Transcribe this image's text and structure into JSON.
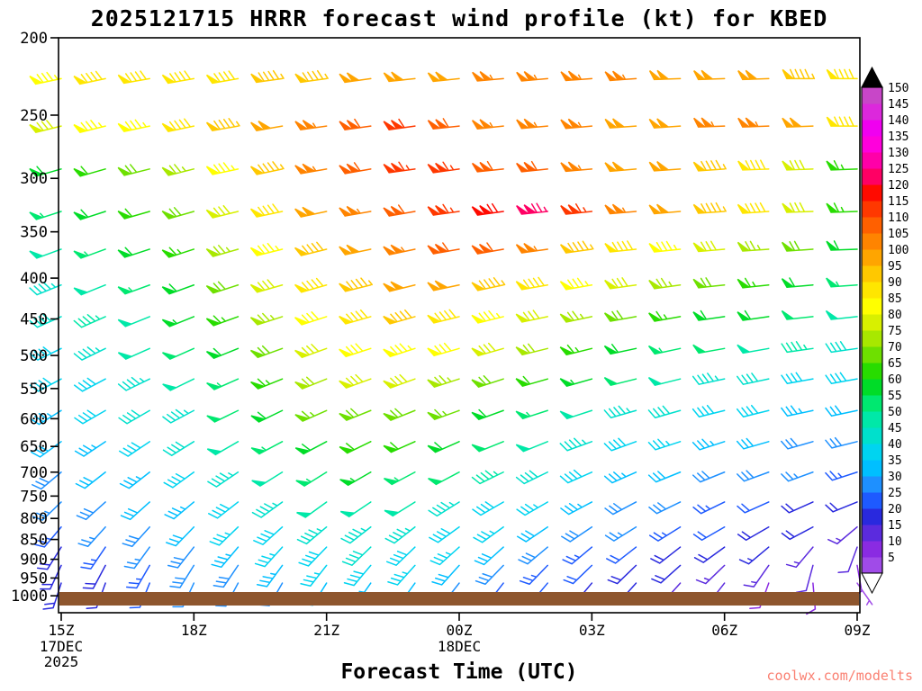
{
  "title": "2025121715 HRRR forecast wind profile (kt) for KBED",
  "xlabel": "Forecast Time (UTC)",
  "watermark": "coolwx.com/modelts",
  "ground_color": "#8E562E",
  "axes": {
    "pressure_ticks": [
      200,
      250,
      300,
      350,
      400,
      450,
      500,
      550,
      600,
      650,
      700,
      750,
      800,
      850,
      900,
      950,
      1000
    ],
    "time_ticks": [
      {
        "label": "15Z",
        "hour": 0
      },
      {
        "label": "18Z",
        "hour": 3
      },
      {
        "label": "21Z",
        "hour": 6
      },
      {
        "label": "00Z",
        "hour": 9
      },
      {
        "label": "03Z",
        "hour": 12
      },
      {
        "label": "06Z",
        "hour": 15
      },
      {
        "label": "09Z",
        "hour": 18
      }
    ],
    "date_labels": [
      {
        "text": "17DEC",
        "hour": 0,
        "row": 0
      },
      {
        "text": "2025",
        "hour": 0,
        "row": 1
      },
      {
        "text": "18DEC",
        "hour": 9,
        "row": 0
      }
    ]
  },
  "colorbar": {
    "units": "kt",
    "levels": [
      5,
      10,
      15,
      20,
      25,
      30,
      35,
      40,
      45,
      50,
      55,
      60,
      65,
      70,
      75,
      80,
      85,
      90,
      95,
      100,
      105,
      110,
      115,
      120,
      125,
      130,
      135,
      140,
      145,
      150
    ],
    "colors": [
      "#A04BE8",
      "#8A2BE2",
      "#5B2BDE",
      "#2929DE",
      "#1E5AFF",
      "#1E90FF",
      "#00BFFF",
      "#00D4F0",
      "#00E0CC",
      "#00E8A8",
      "#00E870",
      "#00DC28",
      "#28DC00",
      "#6EE000",
      "#A8E800",
      "#D8F000",
      "#FFFF00",
      "#FFE600",
      "#FFC800",
      "#FFA500",
      "#FF8400",
      "#FF6000",
      "#FF3800",
      "#FF0A00",
      "#FF0064",
      "#FF00A8",
      "#FF00DC",
      "#F000F0",
      "#DC28DC",
      "#C846C8"
    ],
    "over_color": "#000000",
    "under_color": "#ffffff"
  },
  "chart_data": {
    "type": "wind-profile-barbs",
    "title": "2025121715 HRRR forecast wind profile (kt) for KBED",
    "xlabel": "Forecast Time (UTC)",
    "ylabel": "",
    "units": "kt",
    "pressure_range_hpa": [
      200,
      1050
    ],
    "y_scale": "log-pressure",
    "times": [
      "15Z",
      "16Z",
      "17Z",
      "18Z",
      "19Z",
      "20Z",
      "21Z",
      "22Z",
      "23Z",
      "00Z",
      "01Z",
      "02Z",
      "03Z",
      "04Z",
      "05Z",
      "06Z",
      "07Z",
      "08Z",
      "09Z"
    ],
    "pressure_levels": [
      225,
      258,
      292,
      330,
      368,
      408,
      447,
      490,
      535,
      586,
      641,
      700,
      763,
      820,
      869,
      916,
      964
    ],
    "speeds_kt": [
      [
        85,
        90,
        90,
        90,
        90,
        95,
        95,
        100,
        100,
        100,
        105,
        105,
        105,
        105,
        100,
        100,
        100,
        95,
        90
      ],
      [
        80,
        85,
        85,
        90,
        95,
        100,
        105,
        110,
        112,
        110,
        105,
        105,
        105,
        100,
        100,
        105,
        105,
        100,
        90
      ],
      [
        60,
        62,
        68,
        75,
        85,
        95,
        105,
        110,
        115,
        115,
        110,
        108,
        105,
        100,
        98,
        95,
        90,
        80,
        65
      ],
      [
        55,
        58,
        62,
        70,
        80,
        90,
        98,
        105,
        110,
        115,
        120,
        125,
        115,
        105,
        100,
        95,
        88,
        78,
        65
      ],
      [
        50,
        55,
        58,
        65,
        75,
        85,
        92,
        100,
        105,
        108,
        110,
        105,
        95,
        90,
        85,
        80,
        75,
        68,
        60
      ],
      [
        45,
        50,
        55,
        60,
        70,
        80,
        88,
        95,
        100,
        100,
        95,
        90,
        85,
        80,
        75,
        70,
        65,
        60,
        55
      ],
      [
        42,
        46,
        50,
        56,
        65,
        75,
        82,
        88,
        92,
        90,
        85,
        80,
        75,
        70,
        65,
        60,
        58,
        52,
        48
      ],
      [
        40,
        44,
        48,
        52,
        60,
        70,
        78,
        82,
        85,
        82,
        78,
        72,
        65,
        60,
        55,
        52,
        50,
        46,
        42
      ],
      [
        38,
        40,
        44,
        48,
        55,
        65,
        72,
        78,
        78,
        75,
        70,
        62,
        56,
        52,
        48,
        45,
        42,
        40,
        38
      ],
      [
        35,
        38,
        42,
        45,
        52,
        60,
        66,
        70,
        70,
        66,
        60,
        55,
        50,
        45,
        42,
        40,
        38,
        35,
        32
      ],
      [
        32,
        35,
        38,
        42,
        48,
        55,
        60,
        62,
        62,
        58,
        52,
        48,
        44,
        40,
        36,
        34,
        32,
        30,
        28
      ],
      [
        30,
        32,
        35,
        38,
        44,
        50,
        54,
        56,
        55,
        52,
        46,
        42,
        38,
        35,
        32,
        30,
        28,
        26,
        24
      ],
      [
        26,
        30,
        32,
        35,
        40,
        45,
        48,
        50,
        48,
        45,
        40,
        36,
        33,
        30,
        28,
        25,
        22,
        20,
        18
      ],
      [
        24,
        26,
        30,
        32,
        36,
        40,
        44,
        45,
        44,
        40,
        36,
        32,
        28,
        26,
        24,
        22,
        20,
        18,
        15
      ],
      [
        20,
        24,
        26,
        30,
        33,
        36,
        40,
        42,
        40,
        36,
        32,
        28,
        25,
        22,
        20,
        18,
        16,
        14,
        12
      ],
      [
        18,
        20,
        24,
        28,
        30,
        34,
        36,
        38,
        36,
        32,
        28,
        25,
        22,
        20,
        18,
        15,
        13,
        11,
        9
      ],
      [
        18,
        20,
        22,
        26,
        28,
        30,
        32,
        34,
        32,
        28,
        25,
        22,
        18,
        16,
        14,
        12,
        10,
        8,
        5
      ]
    ],
    "directions_deg": [
      [
        258,
        258,
        260,
        260,
        260,
        262,
        262,
        262,
        264,
        264,
        265,
        265,
        266,
        266,
        268,
        268,
        268,
        270,
        270
      ],
      [
        256,
        256,
        258,
        258,
        260,
        260,
        262,
        262,
        262,
        264,
        264,
        265,
        265,
        266,
        266,
        268,
        268,
        268,
        270
      ],
      [
        254,
        254,
        256,
        256,
        258,
        258,
        260,
        260,
        262,
        262,
        264,
        264,
        265,
        265,
        266,
        266,
        268,
        268,
        268
      ],
      [
        252,
        252,
        254,
        254,
        256,
        258,
        258,
        260,
        260,
        262,
        262,
        264,
        264,
        265,
        265,
        266,
        266,
        268,
        268
      ],
      [
        250,
        250,
        252,
        252,
        254,
        256,
        256,
        258,
        258,
        260,
        260,
        262,
        262,
        264,
        264,
        265,
        266,
        266,
        268
      ],
      [
        248,
        248,
        250,
        250,
        252,
        254,
        254,
        256,
        256,
        258,
        258,
        260,
        260,
        262,
        262,
        264,
        264,
        265,
        266
      ],
      [
        246,
        246,
        248,
        248,
        250,
        252,
        252,
        254,
        254,
        256,
        256,
        258,
        258,
        260,
        260,
        262,
        262,
        264,
        264
      ],
      [
        244,
        244,
        246,
        246,
        248,
        250,
        250,
        252,
        252,
        254,
        254,
        256,
        256,
        258,
        258,
        260,
        260,
        262,
        262
      ],
      [
        242,
        242,
        244,
        244,
        246,
        248,
        248,
        250,
        250,
        252,
        252,
        254,
        254,
        256,
        256,
        258,
        258,
        260,
        260
      ],
      [
        238,
        240,
        240,
        242,
        244,
        244,
        246,
        248,
        248,
        250,
        250,
        252,
        252,
        254,
        254,
        256,
        256,
        258,
        258
      ],
      [
        234,
        236,
        236,
        238,
        240,
        242,
        242,
        244,
        246,
        246,
        248,
        248,
        250,
        250,
        252,
        252,
        254,
        254,
        256
      ],
      [
        230,
        232,
        232,
        234,
        236,
        238,
        238,
        240,
        242,
        242,
        244,
        244,
        246,
        246,
        248,
        248,
        250,
        250,
        252
      ],
      [
        226,
        228,
        228,
        230,
        232,
        234,
        234,
        236,
        238,
        238,
        240,
        240,
        242,
        242,
        244,
        244,
        246,
        246,
        248
      ],
      [
        220,
        222,
        222,
        224,
        226,
        228,
        230,
        232,
        232,
        234,
        234,
        236,
        236,
        238,
        238,
        240,
        240,
        242,
        230
      ],
      [
        212,
        214,
        216,
        218,
        220,
        222,
        224,
        226,
        226,
        228,
        228,
        230,
        230,
        232,
        232,
        234,
        230,
        220,
        200
      ],
      [
        205,
        208,
        210,
        212,
        214,
        216,
        218,
        220,
        222,
        222,
        224,
        224,
        226,
        226,
        228,
        226,
        215,
        195,
        170
      ],
      [
        198,
        200,
        202,
        205,
        208,
        210,
        212,
        215,
        216,
        218,
        218,
        220,
        220,
        222,
        222,
        218,
        200,
        175,
        145
      ]
    ]
  }
}
